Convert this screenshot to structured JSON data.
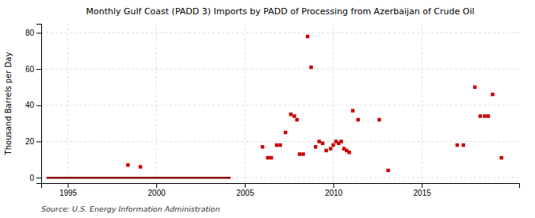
{
  "chart_data": {
    "type": "scatter",
    "title": "Monthly Gulf Coast (PADD 3) Imports by PADD of Processing from Azerbaijan of Crude Oil",
    "y_label": "Thousand Barrels per Day",
    "annotations": [
      "Source: U.S. Energy Information Administration"
    ],
    "xlim": [
      1993.5,
      2020.5
    ],
    "ylim": [
      -3,
      85
    ],
    "xticks": [
      1995,
      2000,
      2005,
      2010,
      2015
    ],
    "yticks": [
      0,
      20,
      40,
      60,
      80
    ],
    "grid": true,
    "series": [
      {
        "type": "line",
        "color": "#8b0000",
        "x": [
          1993.8,
          2004.2
        ],
        "values": [
          0,
          0
        ]
      },
      {
        "type": "scatter",
        "color": "#cc0000",
        "marker": "square",
        "x": [
          1998.4,
          1999.1,
          2006.0,
          2006.3,
          2006.5,
          2006.8,
          2007.0,
          2007.3,
          2007.6,
          2007.8,
          2007.95,
          2008.1,
          2008.3,
          2008.55,
          2008.75,
          2009.0,
          2009.2,
          2009.4,
          2009.6,
          2009.85,
          2010.0,
          2010.15,
          2010.3,
          2010.45,
          2010.6,
          2010.75,
          2010.9,
          2011.1,
          2011.4,
          2012.6,
          2013.1,
          2017.0,
          2017.35,
          2018.0,
          2018.3,
          2018.55,
          2018.75,
          2019.0,
          2019.5
        ],
        "values": [
          7,
          6,
          17,
          11,
          11,
          18,
          18,
          25,
          35,
          34,
          32,
          13,
          13,
          78,
          61,
          17,
          20,
          19,
          15,
          16,
          18,
          20,
          19,
          20,
          16,
          15,
          14,
          37,
          32,
          32,
          4,
          18,
          18,
          50,
          34,
          34,
          34,
          46,
          11
        ]
      }
    ]
  }
}
